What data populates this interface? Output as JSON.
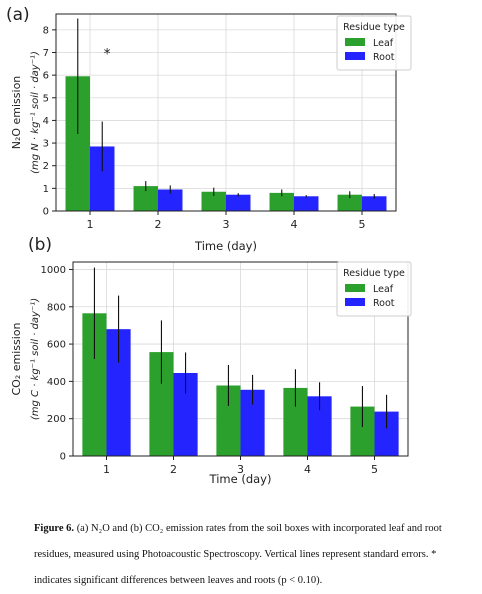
{
  "chart_data": [
    {
      "panel_label": "(a)",
      "type": "bar",
      "categories": [
        "1",
        "2",
        "3",
        "4",
        "5"
      ],
      "xlabel": "Time (day)",
      "ylabel_line1": "N₂O emission",
      "ylabel_line2": "(mg N · kg⁻¹ soil · day⁻¹)",
      "ylim": [
        0,
        8.7
      ],
      "yticks": [
        0,
        1,
        2,
        3,
        4,
        5,
        6,
        7,
        8
      ],
      "grid": true,
      "legend": {
        "title": "Residue type",
        "placement": "top-right"
      },
      "annotation": {
        "text": "*",
        "category": "1"
      },
      "series": [
        {
          "name": "Leaf",
          "color": "#2ca02c",
          "values": [
            5.95,
            1.1,
            0.85,
            0.8,
            0.72
          ],
          "errors": [
            2.55,
            0.22,
            0.18,
            0.15,
            0.15
          ]
        },
        {
          "name": "Root",
          "color": "#2424ff",
          "values": [
            2.85,
            0.95,
            0.72,
            0.65,
            0.65
          ],
          "errors": [
            1.1,
            0.18,
            0.07,
            0.05,
            0.1
          ]
        }
      ]
    },
    {
      "panel_label": "(b)",
      "type": "bar",
      "categories": [
        "1",
        "2",
        "3",
        "4",
        "5"
      ],
      "xlabel": "Time (day)",
      "ylabel_line1": "CO₂ emission",
      "ylabel_line2": "(mg C · kg⁻¹ soil · day⁻¹)",
      "ylim": [
        0,
        1040
      ],
      "yticks": [
        0,
        200,
        400,
        600,
        800,
        1000
      ],
      "grid": true,
      "legend": {
        "title": "Residue type",
        "placement": "top-right"
      },
      "series": [
        {
          "name": "Leaf",
          "color": "#2ca02c",
          "values": [
            765,
            557,
            378,
            365,
            265
          ],
          "errors": [
            245,
            170,
            110,
            100,
            110
          ]
        },
        {
          "name": "Root",
          "color": "#2424ff",
          "values": [
            680,
            445,
            355,
            320,
            238
          ],
          "errors": [
            180,
            110,
            80,
            75,
            90
          ]
        }
      ]
    }
  ],
  "caption": {
    "label": "Figure 6.",
    "text": " (a) N₂O and (b) CO₂ emission rates from the soil boxes with incorporated leaf and root residues, measured using Photoacoustic Spectroscopy. Vertical lines represent standard errors. * indicates significant differences between leaves and roots (p < 0.10)."
  }
}
